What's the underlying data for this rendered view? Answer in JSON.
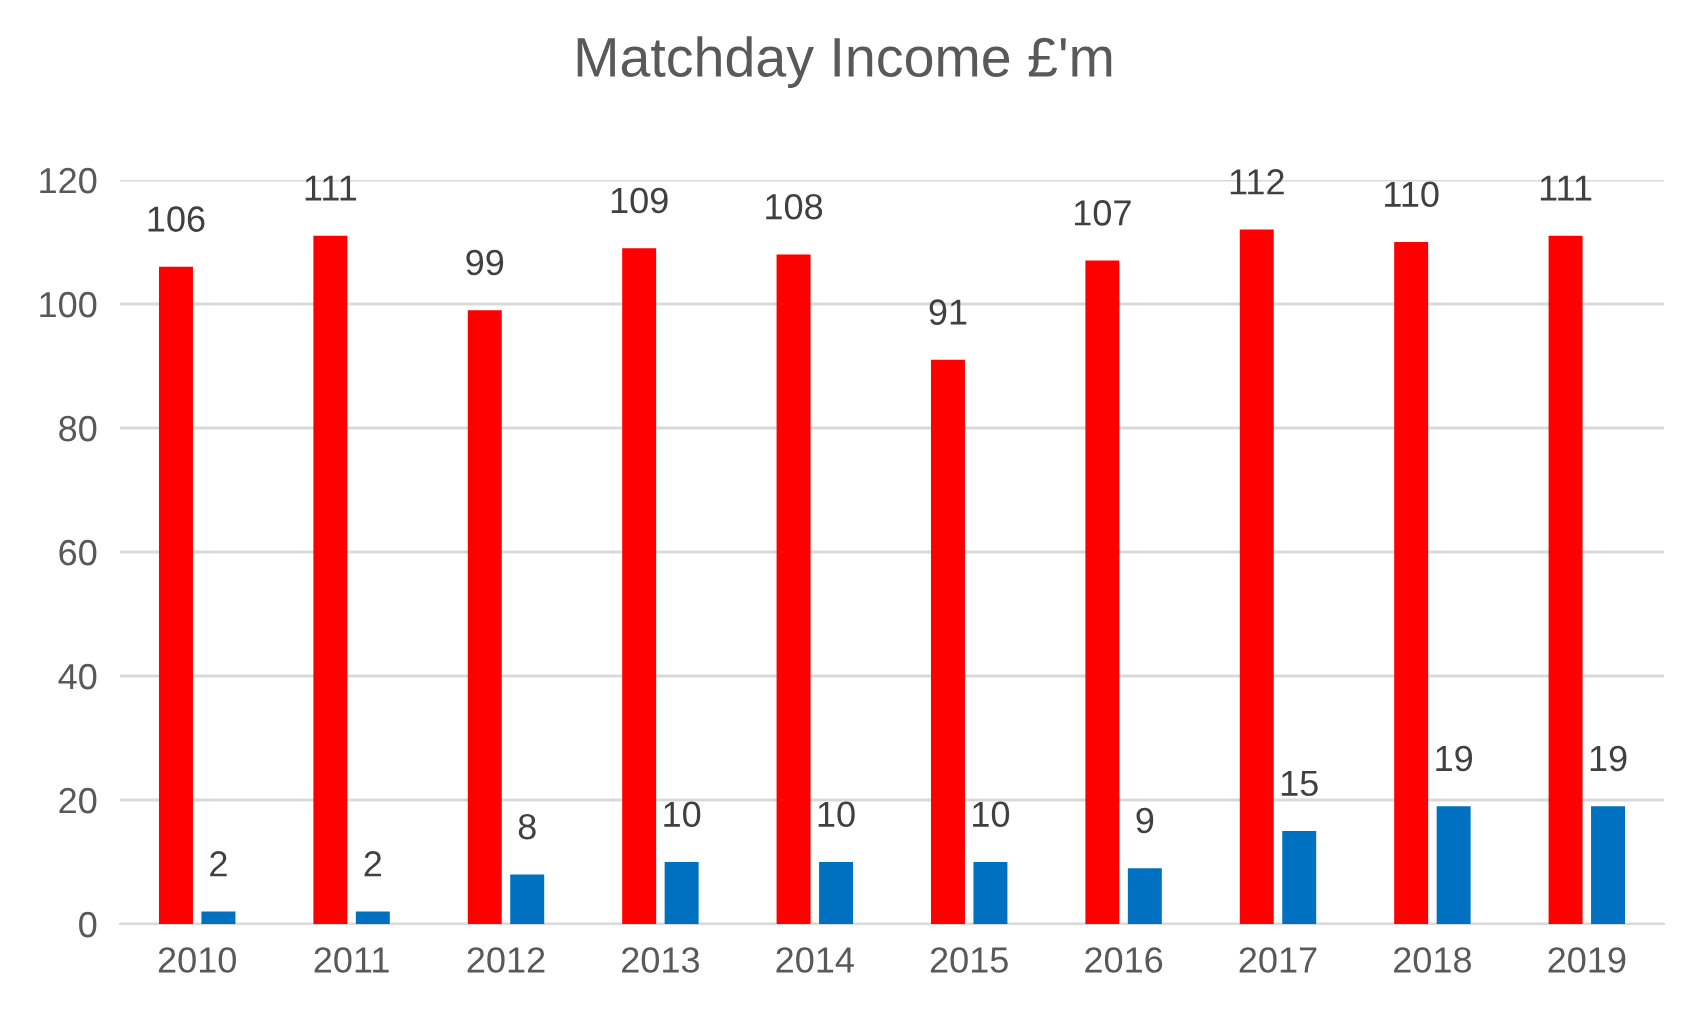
{
  "chart_data": {
    "type": "bar",
    "title": "Matchday Income £'m",
    "categories": [
      "2010",
      "2011",
      "2012",
      "2013",
      "2014",
      "2015",
      "2016",
      "2017",
      "2018",
      "2019"
    ],
    "series": [
      {
        "color": "#ff0000",
        "values": [
          106,
          111,
          99,
          109,
          108,
          91,
          107,
          112,
          110,
          111
        ]
      },
      {
        "color": "#0070c0",
        "values": [
          2,
          2,
          8,
          10,
          10,
          10,
          9,
          15,
          19,
          19
        ]
      }
    ],
    "ylim": [
      0,
      120
    ],
    "yticks": [
      0,
      20,
      40,
      60,
      80,
      100,
      120
    ],
    "grid": "y",
    "data_labels": true,
    "legend": false
  }
}
